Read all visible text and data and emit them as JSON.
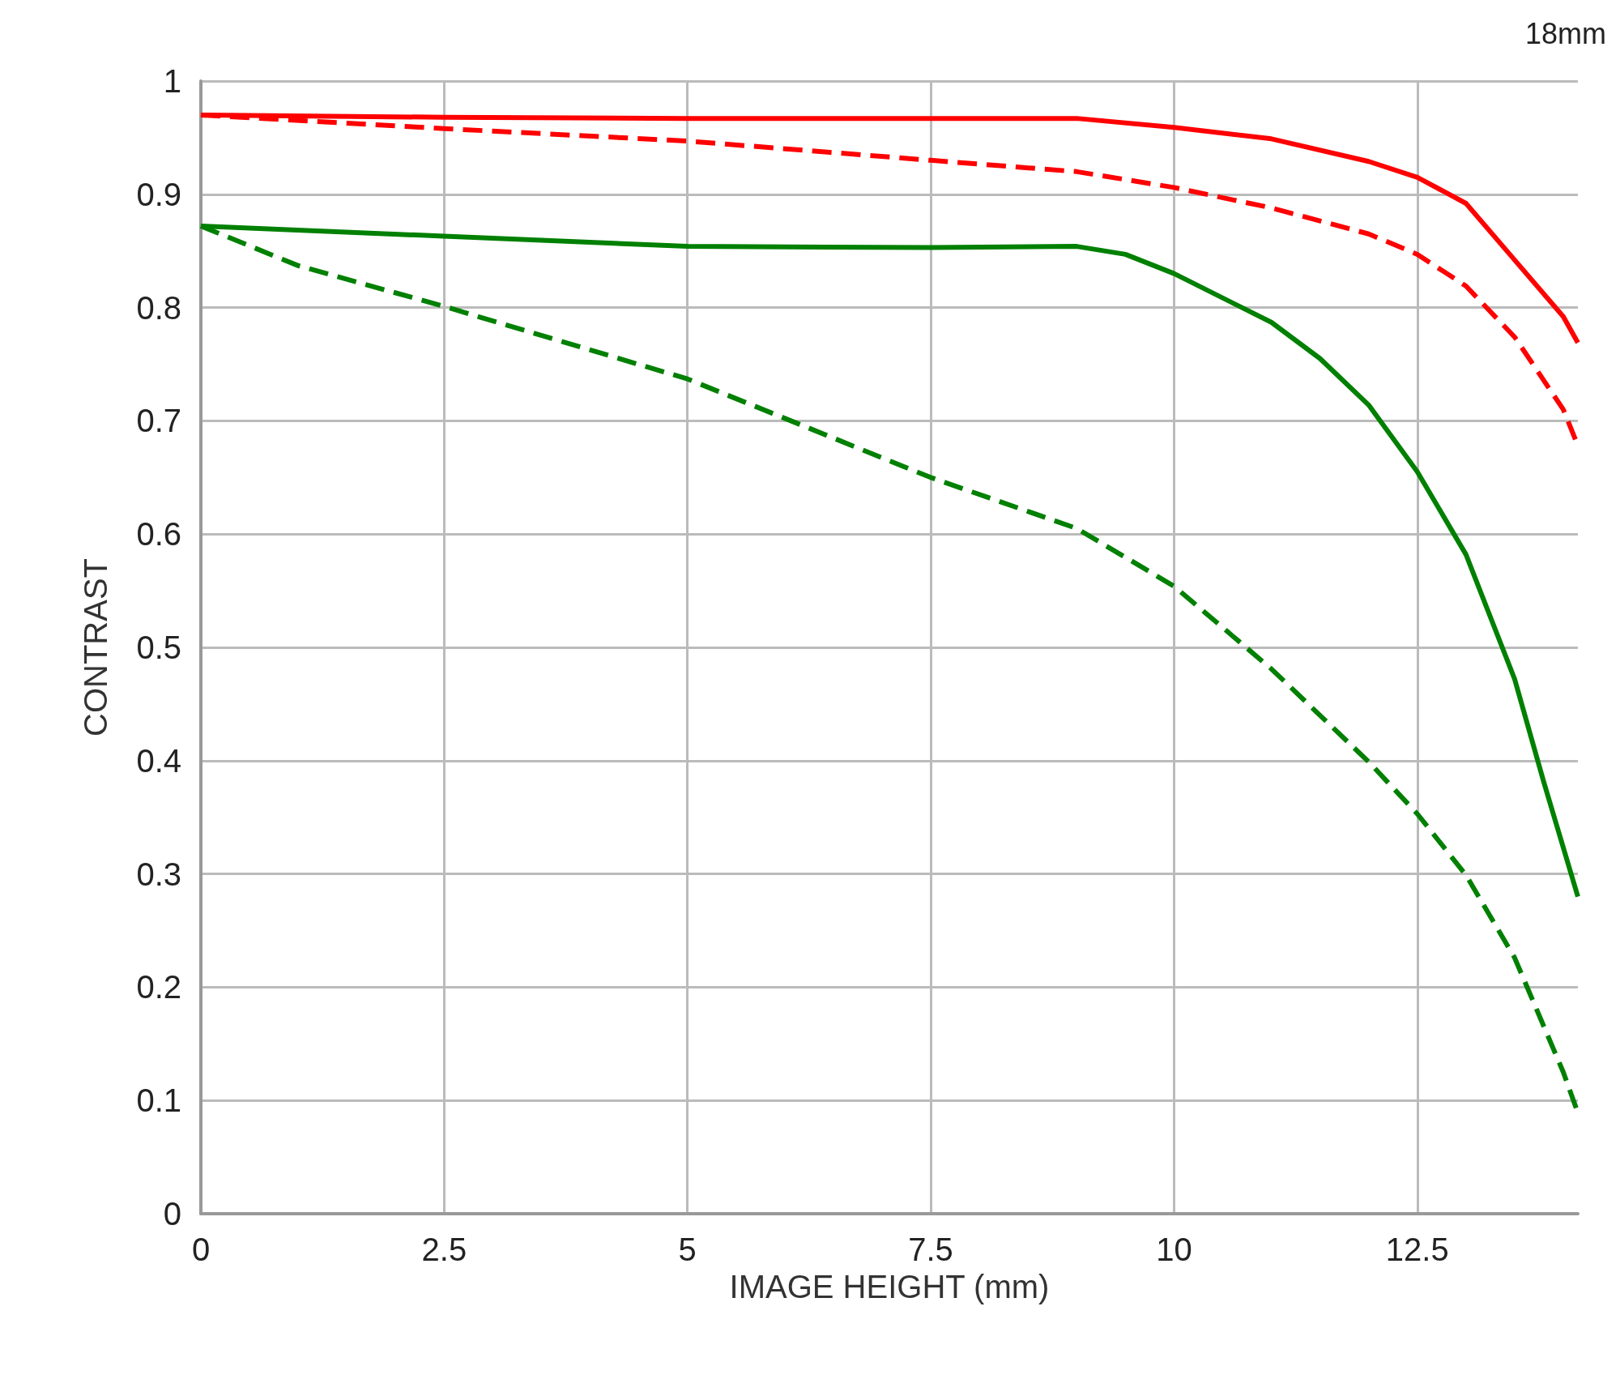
{
  "chart_data": {
    "type": "line",
    "title": "18mm",
    "xlabel": "IMAGE HEIGHT (mm)",
    "ylabel": "CONTRAST",
    "xlim": [
      0,
      14.15
    ],
    "ylim": [
      0,
      1
    ],
    "xticks": [
      0,
      2.5,
      5,
      7.5,
      10,
      12.5
    ],
    "yticks": [
      0,
      0.1,
      0.2,
      0.3,
      0.4,
      0.5,
      0.6,
      0.7,
      0.8,
      0.9,
      1
    ],
    "grid": true,
    "marker": "none",
    "series": [
      {
        "color": "#ff0000",
        "line_style": "solid",
        "x": [
          0,
          2.5,
          5,
          7.5,
          9,
          10,
          11,
          12,
          12.5,
          13,
          13.5,
          14,
          14.15
        ],
        "values": [
          0.97,
          0.968,
          0.967,
          0.967,
          0.967,
          0.959,
          0.949,
          0.929,
          0.915,
          0.892,
          0.842,
          0.792,
          0.769
        ]
      },
      {
        "color": "#ff0000",
        "line_style": "dashed",
        "x": [
          0,
          2.5,
          5,
          7.5,
          9,
          10,
          11,
          12,
          12.5,
          13,
          13.5,
          14,
          14.15
        ],
        "values": [
          0.97,
          0.958,
          0.947,
          0.93,
          0.92,
          0.906,
          0.888,
          0.865,
          0.847,
          0.819,
          0.774,
          0.71,
          0.678
        ]
      },
      {
        "color": "#008000",
        "line_style": "solid",
        "x": [
          0,
          2.5,
          5,
          7.5,
          9,
          9.5,
          10,
          11,
          11.5,
          12,
          12.5,
          13,
          13.5,
          13.8,
          14.15
        ],
        "values": [
          0.872,
          0.863,
          0.854,
          0.853,
          0.854,
          0.847,
          0.83,
          0.787,
          0.755,
          0.714,
          0.655,
          0.582,
          0.472,
          0.381,
          0.28
        ]
      },
      {
        "color": "#008000",
        "line_style": "dashed",
        "x": [
          0,
          1,
          2.5,
          5,
          7.5,
          9,
          10,
          11,
          12,
          12.5,
          13,
          13.5,
          14,
          14.15
        ],
        "values": [
          0.872,
          0.837,
          0.801,
          0.737,
          0.65,
          0.605,
          0.554,
          0.481,
          0.399,
          0.353,
          0.299,
          0.226,
          0.125,
          0.089
        ]
      }
    ]
  }
}
